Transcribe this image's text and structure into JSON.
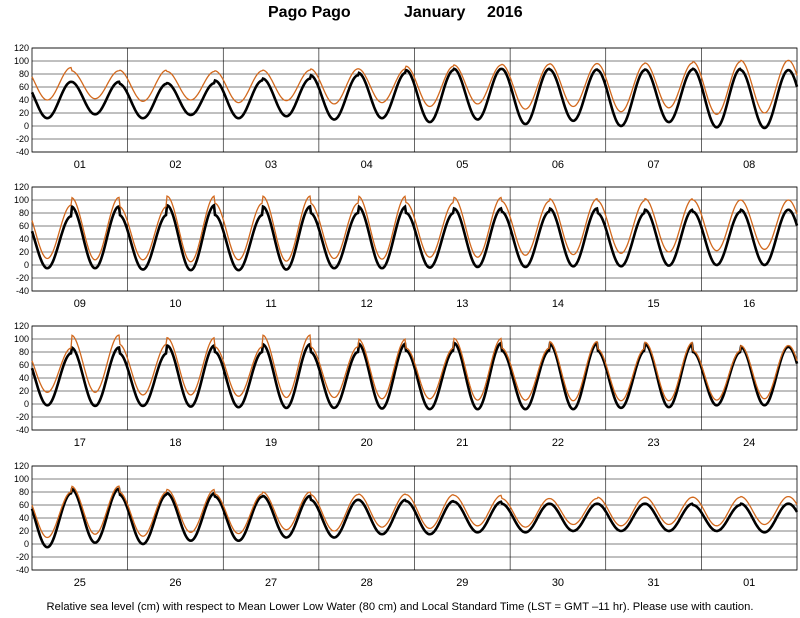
{
  "title": {
    "station": "Pago Pago",
    "month": "January",
    "year": "2016"
  },
  "footer": "Relative sea level (cm) with respect to Mean Lower Low Water (80 cm) and Local Standard Time (LST = GMT –11 hr). Please use with caution.",
  "colors": {
    "black_series": "#000000",
    "orange_series": "#d2691e",
    "grid": "#000000"
  },
  "chart_data": [
    {
      "type": "line",
      "panel": 1,
      "categories": [
        "01",
        "02",
        "03",
        "04",
        "05",
        "06",
        "07",
        "08"
      ],
      "ylim": [
        -40,
        120
      ],
      "yticks": [
        -40,
        -20,
        0,
        20,
        40,
        60,
        80,
        100,
        120
      ],
      "grid": true,
      "series": [
        {
          "color": "black",
          "highs": [
            68,
            68,
            65,
            66,
            70,
            73,
            78,
            82,
            86,
            88,
            88,
            87,
            86,
            87,
            88,
            86
          ],
          "lows": [
            12,
            18,
            12,
            17,
            12,
            15,
            10,
            12,
            6,
            10,
            3,
            8,
            0,
            6,
            -2,
            -3
          ]
        },
        {
          "color": "orange",
          "highs": [
            90,
            85,
            86,
            84,
            85,
            86,
            88,
            88,
            92,
            94,
            95,
            96,
            96,
            97,
            99,
            101
          ],
          "lows": [
            40,
            42,
            38,
            40,
            36,
            39,
            34,
            36,
            30,
            34,
            26,
            30,
            22,
            28,
            18,
            20
          ]
        }
      ]
    },
    {
      "type": "line",
      "panel": 2,
      "categories": [
        "09",
        "10",
        "11",
        "12",
        "13",
        "14",
        "15",
        "16"
      ],
      "ylim": [
        -40,
        120
      ],
      "yticks": [
        -40,
        -20,
        0,
        20,
        40,
        60,
        80,
        100,
        120
      ],
      "grid": true,
      "series": [
        {
          "color": "black",
          "highs": [
            75,
            90,
            77,
            92,
            77,
            90,
            80,
            90,
            80,
            87,
            82,
            87,
            80,
            85,
            82,
            85
          ],
          "lows": [
            -5,
            -5,
            -7,
            -8,
            -8,
            -7,
            -5,
            -5,
            -4,
            -3,
            -3,
            -2,
            -2,
            -1,
            0,
            0
          ]
        },
        {
          "color": "orange",
          "highs": [
            92,
            104,
            90,
            106,
            95,
            106,
            95,
            106,
            96,
            104,
            98,
            102,
            99,
            102,
            100,
            100
          ],
          "lows": [
            10,
            8,
            8,
            5,
            8,
            6,
            10,
            9,
            12,
            12,
            15,
            16,
            18,
            20,
            22,
            24
          ]
        }
      ]
    },
    {
      "type": "line",
      "panel": 3,
      "categories": [
        "17",
        "18",
        "19",
        "20",
        "21",
        "22",
        "23",
        "24"
      ],
      "ylim": [
        -40,
        120
      ],
      "yticks": [
        -40,
        -20,
        0,
        20,
        40,
        60,
        80,
        100,
        120
      ],
      "grid": true,
      "series": [
        {
          "color": "black",
          "highs": [
            78,
            87,
            78,
            90,
            80,
            92,
            80,
            93,
            82,
            94,
            82,
            93,
            82,
            92,
            80,
            88
          ],
          "lows": [
            -2,
            -3,
            -3,
            -4,
            -5,
            -6,
            -6,
            -7,
            -8,
            -8,
            -8,
            -8,
            -6,
            -5,
            -2,
            -2
          ]
        },
        {
          "color": "orange",
          "highs": [
            86,
            106,
            92,
            102,
            88,
            106,
            88,
            100,
            86,
            101,
            86,
            96,
            85,
            95,
            82,
            90
          ],
          "lows": [
            18,
            18,
            14,
            14,
            12,
            10,
            10,
            8,
            8,
            6,
            6,
            5,
            5,
            5,
            6,
            8
          ]
        }
      ]
    },
    {
      "type": "line",
      "panel": 4,
      "categories": [
        "25",
        "26",
        "27",
        "28",
        "29",
        "30",
        "31",
        "01"
      ],
      "ylim": [
        -40,
        120
      ],
      "yticks": [
        -40,
        -20,
        0,
        20,
        40,
        60,
        80,
        100,
        120
      ],
      "grid": true,
      "series": [
        {
          "color": "black",
          "highs": [
            78,
            85,
            76,
            78,
            73,
            74,
            68,
            68,
            66,
            65,
            62,
            62,
            62,
            62,
            60,
            62
          ],
          "lows": [
            -5,
            2,
            0,
            5,
            5,
            10,
            10,
            15,
            15,
            18,
            18,
            20,
            20,
            20,
            20,
            18
          ]
        },
        {
          "color": "orange",
          "highs": [
            80,
            89,
            80,
            84,
            77,
            80,
            76,
            77,
            76,
            75,
            70,
            70,
            72,
            72,
            72,
            73
          ],
          "lows": [
            10,
            15,
            12,
            18,
            16,
            22,
            20,
            26,
            24,
            28,
            26,
            30,
            28,
            30,
            28,
            30
          ]
        }
      ]
    }
  ]
}
